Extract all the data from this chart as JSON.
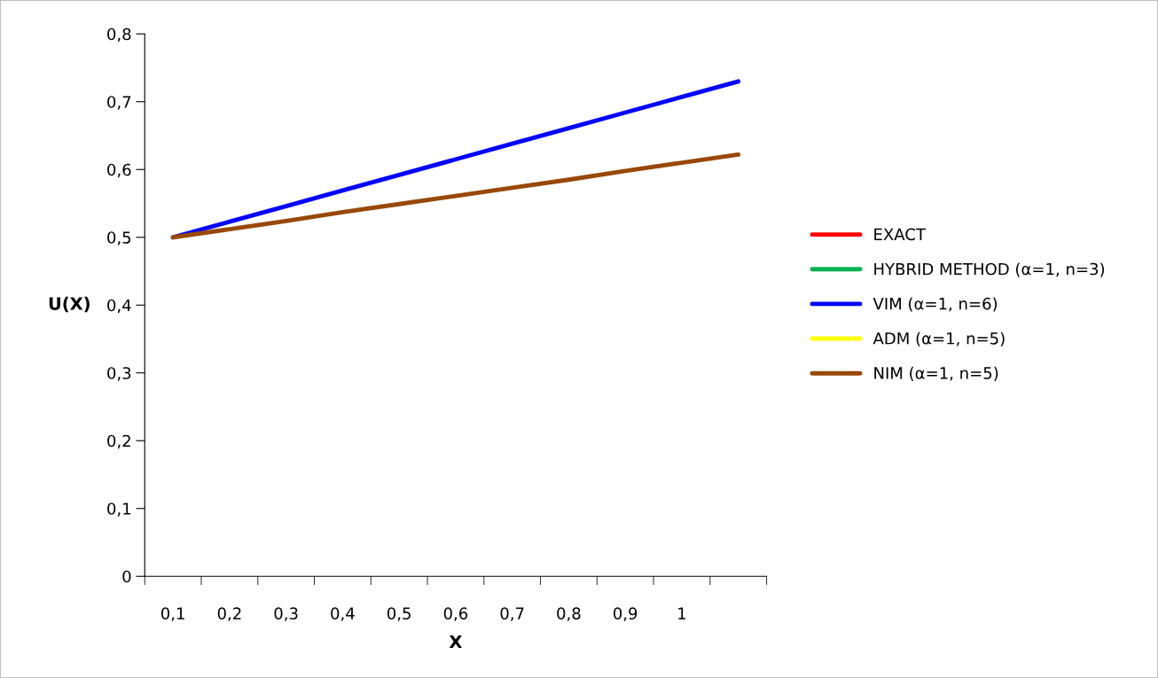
{
  "chart_data": {
    "type": "line",
    "xlabel": "X",
    "ylabel": "U(X)",
    "categories": [
      "0,1",
      "0,2",
      "0,3",
      "0,4",
      "0,5",
      "0,6",
      "0,7",
      "0,8",
      "0,9",
      "1",
      null
    ],
    "series": [
      {
        "name": "EXACT",
        "color": "#ff0000",
        "values": [
          null,
          null,
          null,
          null,
          null,
          null,
          null,
          null,
          null,
          null,
          null
        ]
      },
      {
        "name": "HYBRID METHOD (α=1, n=3)",
        "color": "#00b050",
        "values": [
          null,
          null,
          null,
          null,
          null,
          null,
          null,
          null,
          null,
          null,
          null
        ]
      },
      {
        "name": "VIM (α=1, n=6)",
        "color": "#0000ff",
        "values": [
          0.5,
          0.523,
          0.546,
          0.569,
          0.592,
          0.615,
          0.638,
          0.661,
          0.684,
          0.707,
          0.73
        ]
      },
      {
        "name": "ADM (α=1, n=5)",
        "color": "#ffff00",
        "values": [
          null,
          null,
          null,
          null,
          null,
          null,
          null,
          null,
          null,
          null,
          null
        ]
      },
      {
        "name": "NIM (α=1, n=5)",
        "color": "#984807",
        "values": [
          0.5,
          0.512,
          0.524,
          0.537,
          0.549,
          0.561,
          0.573,
          0.585,
          0.598,
          0.61,
          0.622
        ]
      }
    ],
    "ylim": [
      0,
      0.8
    ],
    "yticks": [
      0,
      {
        "value": 0.1,
        "label": "0,1"
      },
      {
        "value": 0.2,
        "label": "0,2"
      },
      {
        "value": 0.3,
        "label": "0,3"
      },
      {
        "value": 0.4,
        "label": "0,4"
      },
      {
        "value": 0.5,
        "label": "0,5"
      },
      {
        "value": 0.6,
        "label": "0,6"
      },
      {
        "value": 0.7,
        "label": "0,7"
      },
      {
        "value": 0.8,
        "label": "0,8"
      }
    ],
    "grid": false,
    "legend": "right",
    "marker": "none",
    "line_style": "solid"
  }
}
